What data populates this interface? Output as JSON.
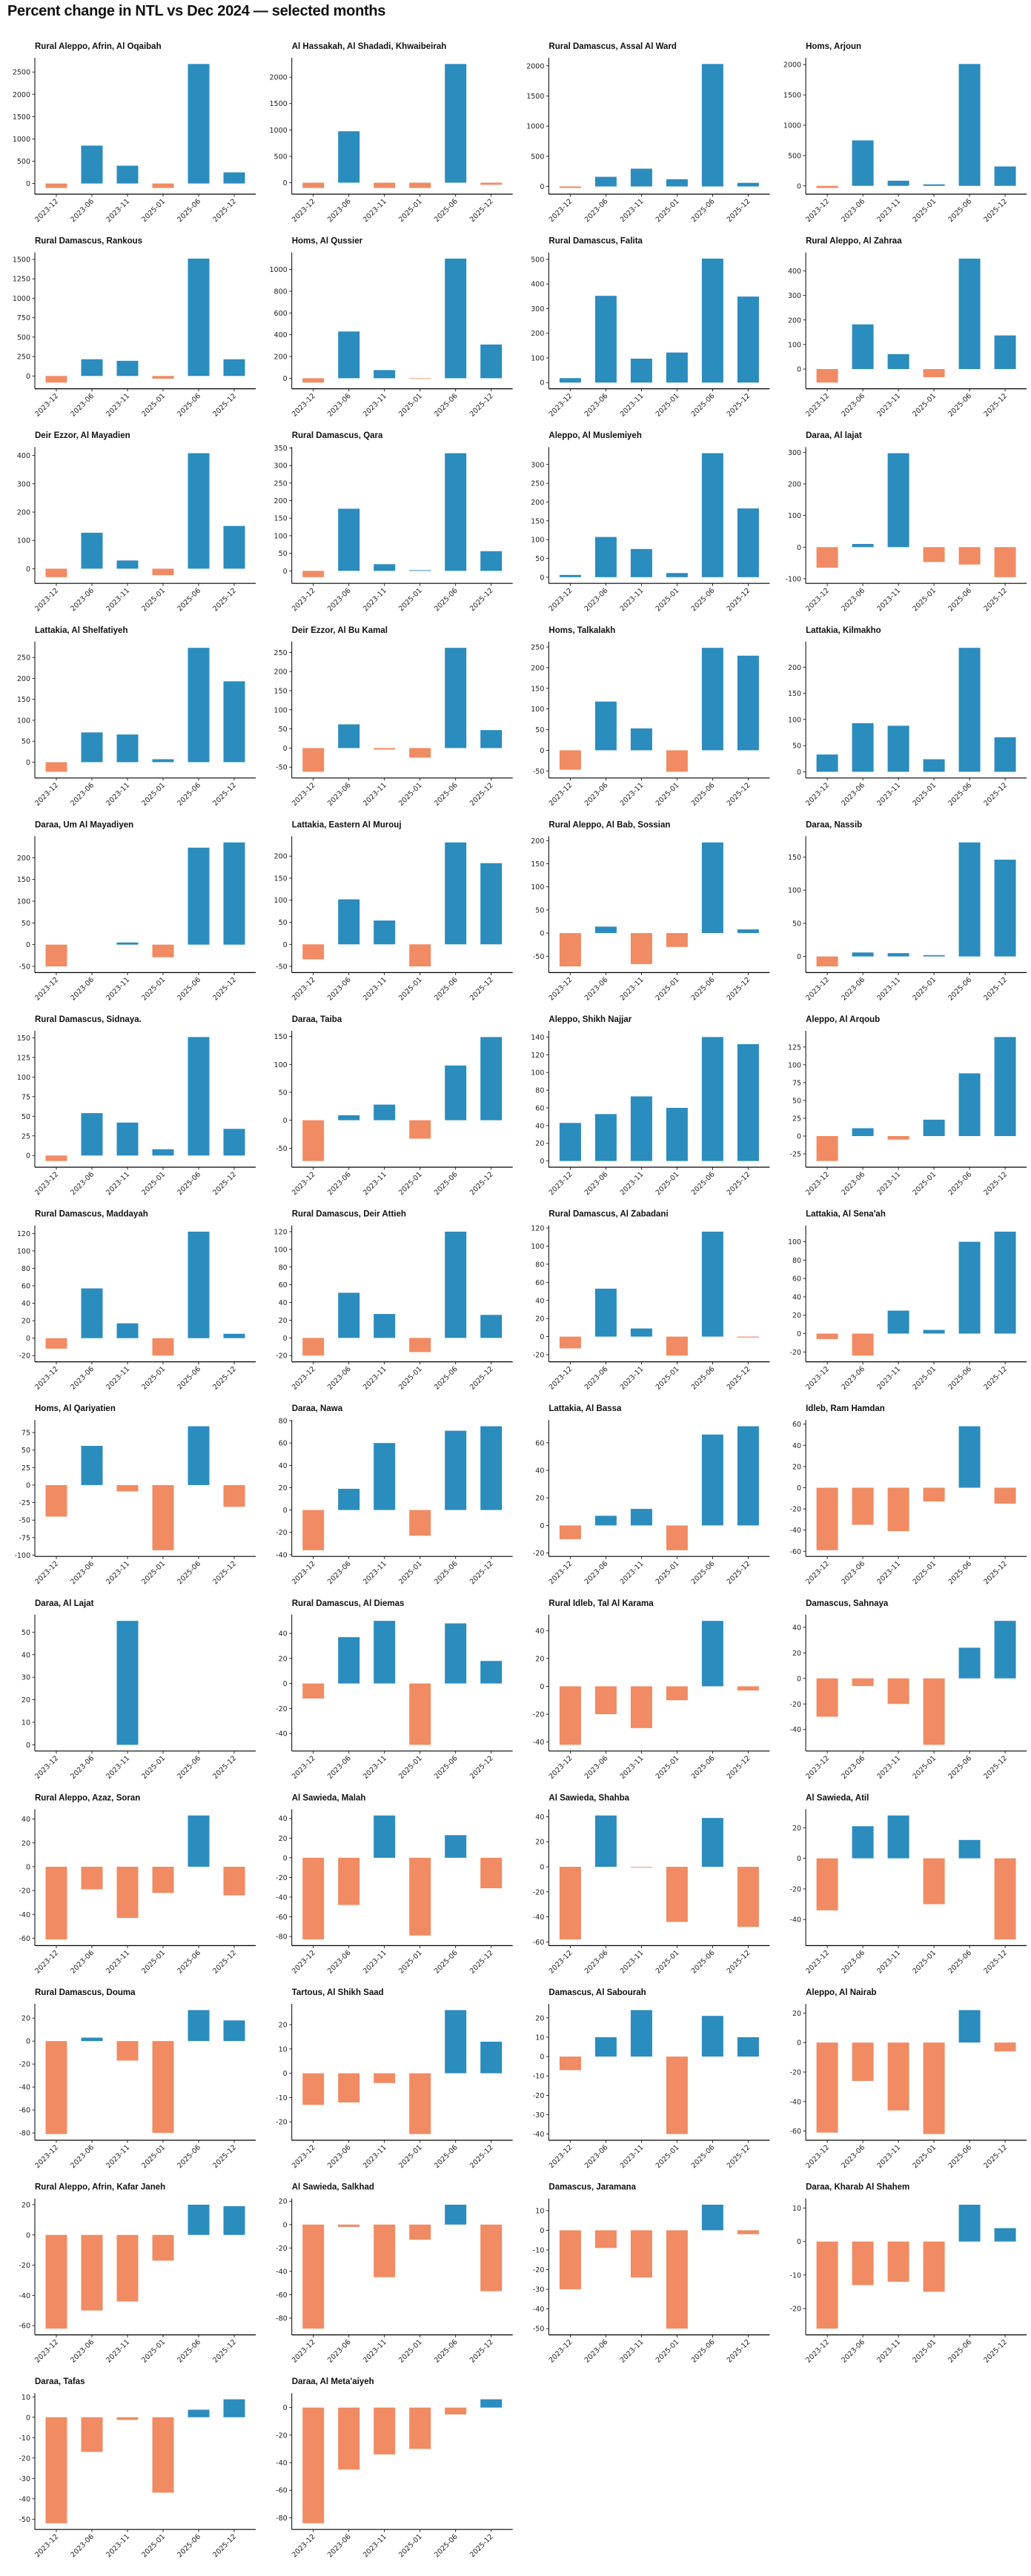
{
  "title": "Percent change in NTL vs Dec 2024 — selected months",
  "colors": {
    "positive": "#2b8cbe",
    "negative": "#f08b63",
    "axis": "#000000"
  },
  "chart_data": {
    "type": "bar",
    "layout": "small-multiples 4 columns",
    "categories": [
      "2023-12",
      "2023-06",
      "2023-11",
      "2025-01",
      "2025-06",
      "2025-12"
    ],
    "grid": false,
    "panels": [
      {
        "title": "Rural Aleppo, Afrin, Al Oqaibah",
        "values": [
          -100,
          850,
          400,
          -100,
          2680,
          250
        ],
        "yticks": [
          "0",
          "500",
          "1000",
          "1500",
          "2000",
          "2500"
        ]
      },
      {
        "title": "Al Hassakah, Al Shadadi, Khwaibeirah",
        "values": [
          -100,
          975,
          -100,
          -100,
          2250,
          -40
        ],
        "yticks": [
          "0",
          "500",
          "1000",
          "1500",
          "2000"
        ]
      },
      {
        "title": "Rural Damascus, Assal Al Ward",
        "values": [
          -25,
          160,
          295,
          120,
          2030,
          60
        ],
        "yticks": [
          "0",
          "500",
          "1000",
          "1500",
          "2000"
        ]
      },
      {
        "title": "Homs, Arjoun",
        "values": [
          -35,
          750,
          85,
          25,
          2010,
          320
        ],
        "yticks": [
          "0",
          "500",
          "1000",
          "1500",
          "2000"
        ]
      },
      {
        "title": "Rural Damascus, Rankous",
        "values": [
          -85,
          215,
          195,
          -35,
          1510,
          215
        ],
        "yticks": [
          "0",
          "250",
          "500",
          "750",
          "1000",
          "1250",
          "1500"
        ]
      },
      {
        "title": "Homs, Al Qussier",
        "values": [
          -40,
          430,
          75,
          -5,
          1100,
          310
        ],
        "yticks": [
          "0",
          "200",
          "400",
          "600",
          "800",
          "1000"
        ]
      },
      {
        "title": "Rural Damascus, Falita",
        "values": [
          18,
          352,
          97,
          122,
          503,
          349
        ],
        "yticks": [
          "0",
          "100",
          "200",
          "300",
          "400",
          "500"
        ]
      },
      {
        "title": "Rural Aleppo, Al Zahraa",
        "values": [
          -55,
          182,
          61,
          -33,
          450,
          137
        ],
        "yticks": [
          "0",
          "100",
          "200",
          "300",
          "400"
        ]
      },
      {
        "title": "Deir Ezzor, Al Mayadien",
        "values": [
          -30,
          127,
          29,
          -23,
          408,
          151
        ],
        "yticks": [
          "0",
          "100",
          "200",
          "300",
          "400"
        ]
      },
      {
        "title": "Rural Damascus, Qara",
        "values": [
          -18,
          177,
          19,
          2,
          335,
          56
        ],
        "yticks": [
          "0",
          "50",
          "100",
          "150",
          "200",
          "250",
          "300",
          "350"
        ]
      },
      {
        "title": "Aleppo, Al Muslemiyeh",
        "values": [
          6,
          107,
          75,
          11,
          330,
          183
        ],
        "yticks": [
          "0",
          "50",
          "100",
          "150",
          "200",
          "250",
          "300"
        ]
      },
      {
        "title": "Daraa, Al lajat",
        "values": [
          -65,
          10,
          297,
          -47,
          -55,
          -95
        ],
        "yticks": [
          "-100",
          "0",
          "100",
          "200",
          "300"
        ]
      },
      {
        "title": "Lattakia, Al Shelfatiyeh",
        "values": [
          -23,
          71,
          66,
          7,
          273,
          193
        ],
        "yticks": [
          "0",
          "50",
          "100",
          "150",
          "200",
          "250"
        ]
      },
      {
        "title": "Deir Ezzor, Al Bu Kamal",
        "values": [
          -62,
          62,
          -4,
          -25,
          262,
          47
        ],
        "yticks": [
          "-50",
          "0",
          "50",
          "100",
          "150",
          "200",
          "250"
        ]
      },
      {
        "title": "Homs, Talkalakh",
        "values": [
          -47,
          118,
          53,
          -52,
          248,
          229
        ],
        "yticks": [
          "-50",
          "0",
          "50",
          "100",
          "150",
          "200",
          "250"
        ]
      },
      {
        "title": "Lattakia, Kilmakho",
        "values": [
          33,
          93,
          88,
          24,
          237,
          66
        ],
        "yticks": [
          "0",
          "50",
          "100",
          "150",
          "200"
        ]
      },
      {
        "title": "Daraa, Um Al Mayadiyen",
        "values": [
          -50,
          null,
          5,
          -29,
          223,
          235
        ],
        "yticks": [
          "-50",
          "0",
          "50",
          "100",
          "150",
          "200"
        ]
      },
      {
        "title": "Lattakia, Eastern Al Murouj",
        "values": [
          -34,
          102,
          54,
          -50,
          231,
          184
        ],
        "yticks": [
          "-50",
          "0",
          "50",
          "100",
          "150",
          "200"
        ]
      },
      {
        "title": "Rural Aleppo, Al Bab, Sossian",
        "values": [
          -72,
          14,
          -67,
          -30,
          196,
          8
        ],
        "yticks": [
          "-50",
          "0",
          "50",
          "100",
          "150",
          "200"
        ]
      },
      {
        "title": "Daraa, Nassib",
        "values": [
          -15,
          6,
          5,
          2,
          172,
          146
        ],
        "yticks": [
          "0",
          "50",
          "100",
          "150"
        ]
      },
      {
        "title": "Rural Damascus, Sidnaya.",
        "values": [
          -7,
          54,
          42,
          8,
          151,
          34
        ],
        "yticks": [
          "0",
          "25",
          "50",
          "75",
          "100",
          "125",
          "150"
        ]
      },
      {
        "title": "Daraa, Taiba",
        "values": [
          -73,
          9,
          28,
          -33,
          98,
          149
        ],
        "yticks": [
          "-50",
          "0",
          "50",
          "100",
          "150"
        ]
      },
      {
        "title": "Aleppo, Shikh Najjar",
        "values": [
          43,
          53,
          73,
          60,
          140,
          132
        ],
        "yticks": [
          "0",
          "20",
          "40",
          "60",
          "80",
          "100",
          "120",
          "140"
        ]
      },
      {
        "title": "Aleppo, Al Arqoub",
        "values": [
          -35,
          11,
          -5,
          23,
          88,
          139
        ],
        "yticks": [
          "-25",
          "0",
          "25",
          "50",
          "75",
          "100",
          "125"
        ]
      },
      {
        "title": "Rural Damascus, Maddayah",
        "values": [
          -12,
          57,
          17,
          -20,
          122,
          5
        ],
        "yticks": [
          "-20",
          "0",
          "20",
          "40",
          "60",
          "80",
          "100",
          "120"
        ]
      },
      {
        "title": "Rural Damascus, Deir Attieh",
        "values": [
          -20,
          51,
          27,
          -16,
          120,
          26
        ],
        "yticks": [
          "-20",
          "0",
          "20",
          "40",
          "60",
          "80",
          "100",
          "120"
        ]
      },
      {
        "title": "Rural Damascus, Al Zabadani",
        "values": [
          -13,
          53,
          9,
          -21,
          116,
          -1
        ],
        "yticks": [
          "-20",
          "0",
          "20",
          "40",
          "60",
          "80",
          "100",
          "120"
        ]
      },
      {
        "title": "Lattakia, Al Sena'ah",
        "values": [
          -6,
          -24,
          25,
          4,
          100,
          111
        ],
        "yticks": [
          "-20",
          "0",
          "20",
          "40",
          "60",
          "80",
          "100"
        ]
      },
      {
        "title": "Homs, Al Qariyatien",
        "values": [
          -45,
          56,
          -9,
          -93,
          84,
          -31
        ],
        "yticks": [
          "-100",
          "-75",
          "-50",
          "-25",
          "0",
          "25",
          "50",
          "75"
        ]
      },
      {
        "title": "Daraa, Nawa",
        "values": [
          -36,
          19,
          60,
          -23,
          71,
          75
        ],
        "yticks": [
          "-40",
          "-20",
          "0",
          "20",
          "40",
          "60",
          "80"
        ]
      },
      {
        "title": "Lattakia, Al Bassa",
        "values": [
          -10,
          7,
          12,
          -18,
          66,
          72
        ],
        "yticks": [
          "-20",
          "0",
          "20",
          "40",
          "60"
        ]
      },
      {
        "title": "Idleb, Ram Hamdan",
        "values": [
          -59,
          -35,
          -41,
          -13,
          58,
          -15
        ],
        "yticks": [
          "-60",
          "-40",
          "-20",
          "0",
          "20",
          "40",
          "60"
        ]
      },
      {
        "title": "Daraa, Al Lajat",
        "values": [
          null,
          null,
          55,
          null,
          null,
          null
        ],
        "yticks": [
          "0",
          "10",
          "20",
          "30",
          "40",
          "50"
        ]
      },
      {
        "title": "Rural Damascus, Al Diemas",
        "values": [
          -12,
          37,
          50,
          -49,
          48,
          18
        ],
        "yticks": [
          "-40",
          "-20",
          "0",
          "20",
          "40"
        ]
      },
      {
        "title": "Rural Idleb, Tal Al Karama",
        "values": [
          -42,
          -20,
          -30,
          -10,
          47,
          -3
        ],
        "yticks": [
          "-40",
          "-20",
          "0",
          "20",
          "40"
        ]
      },
      {
        "title": "Damascus, Sahnaya",
        "values": [
          -30,
          -6,
          -20,
          -52,
          24,
          45
        ],
        "yticks": [
          "-40",
          "-20",
          "0",
          "20",
          "40"
        ]
      },
      {
        "title": "Rural Aleppo, Azaz, Soran",
        "values": [
          -61,
          -19,
          -43,
          -22,
          43,
          -24
        ],
        "yticks": [
          "-60",
          "-40",
          "-20",
          "0",
          "20",
          "40"
        ]
      },
      {
        "title": "Al Sawieda, Malah",
        "values": [
          -83,
          -48,
          43,
          -79,
          23,
          -31
        ],
        "yticks": [
          "-80",
          "-60",
          "-40",
          "-20",
          "0",
          "20",
          "40"
        ]
      },
      {
        "title": "Al Sawieda, Shahba",
        "values": [
          -58,
          41,
          -0.5,
          -44,
          39,
          -48
        ],
        "yticks": [
          "-60",
          "-40",
          "-20",
          "0",
          "20",
          "40"
        ]
      },
      {
        "title": "Al Sawieda, Atil",
        "values": [
          -34,
          21,
          28,
          -30,
          12,
          -53
        ],
        "yticks": [
          "-40",
          "-20",
          "0",
          "20"
        ]
      },
      {
        "title": "Rural Damascus, Douma",
        "values": [
          -81,
          3,
          -17,
          -80,
          27,
          18
        ],
        "yticks": [
          "-80",
          "-60",
          "-40",
          "-20",
          "0",
          "20"
        ]
      },
      {
        "title": "Tartous, Al Shikh Saad",
        "values": [
          -13,
          -12,
          -4,
          -25,
          26,
          13
        ],
        "yticks": [
          "-20",
          "-10",
          "0",
          "10",
          "20"
        ]
      },
      {
        "title": "Damascus, Al Sabourah",
        "values": [
          -7,
          10,
          24,
          -40,
          21,
          10
        ],
        "yticks": [
          "-40",
          "-30",
          "-20",
          "-10",
          "0",
          "10",
          "20"
        ]
      },
      {
        "title": "Aleppo, Al Nairab",
        "values": [
          -61,
          -26,
          -46,
          -62,
          22,
          -6
        ],
        "yticks": [
          "-60",
          "-40",
          "-20",
          "0",
          "20"
        ]
      },
      {
        "title": "Rural Aleppo, Afrin, Kafar Janeh",
        "values": [
          -62,
          -50,
          -44,
          -17,
          20,
          19
        ],
        "yticks": [
          "-60",
          "-40",
          "-20",
          "0",
          "20"
        ]
      },
      {
        "title": "Al Sawieda, Salkhad",
        "values": [
          -89,
          -2,
          -45,
          -13,
          17,
          -57
        ],
        "yticks": [
          "-80",
          "-60",
          "-40",
          "-20",
          "0",
          "20"
        ]
      },
      {
        "title": "Damascus, Jaramana",
        "values": [
          -30,
          -9,
          -24,
          -50,
          13,
          -2
        ],
        "yticks": [
          "-50",
          "-40",
          "-30",
          "-20",
          "-10",
          "0",
          "10"
        ]
      },
      {
        "title": "Daraa, Kharab Al Shahem",
        "values": [
          -26,
          -13,
          -12,
          -15,
          11,
          4
        ],
        "yticks": [
          "-20",
          "-10",
          "0",
          "10"
        ]
      },
      {
        "title": "Daraa, Tafas",
        "values": [
          -52,
          -17,
          -1.3,
          -37,
          3.7,
          8.8
        ],
        "yticks": [
          "-50",
          "-40",
          "-30",
          "-20",
          "-10",
          "0",
          "10"
        ]
      },
      {
        "title": "Daraa, Al Meta'aiyeh",
        "values": [
          -84,
          -45,
          -34,
          -30,
          -5,
          6
        ],
        "yticks": [
          "-80",
          "-60",
          "-40",
          "-20",
          "0"
        ]
      }
    ]
  }
}
